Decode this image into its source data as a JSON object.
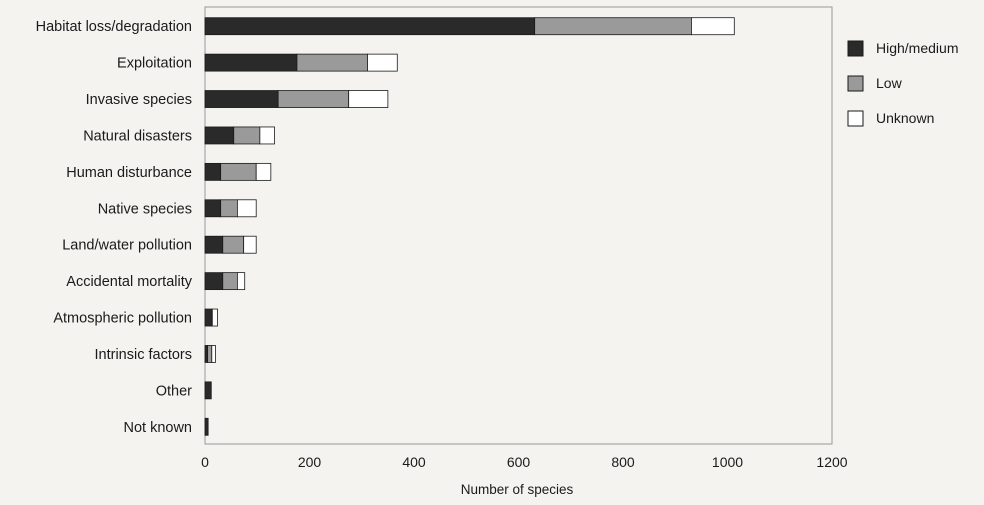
{
  "chart_data": {
    "type": "bar",
    "orientation": "horizontal",
    "stacked": true,
    "categories": [
      "Habitat loss/degradation",
      "Exploitation",
      "Invasive species",
      "Natural disasters",
      "Human disturbance",
      "Native species",
      "Land/water pollution",
      "Accidental mortality",
      "Atmospheric pollution",
      "Intrinsic factors",
      "Other",
      "Not known"
    ],
    "series": [
      {
        "name": "High/medium",
        "color": "#2a2a2a",
        "values": [
          631,
          176,
          140,
          55,
          30,
          30,
          34,
          34,
          14,
          5,
          12,
          6
        ]
      },
      {
        "name": "Low",
        "color": "#9a9a9a",
        "values": [
          300,
          135,
          135,
          50,
          68,
          32,
          40,
          28,
          0,
          8,
          0,
          0
        ]
      },
      {
        "name": "Unknown",
        "color": "#ffffff",
        "values": [
          82,
          57,
          75,
          28,
          28,
          36,
          24,
          14,
          10,
          7,
          0,
          0
        ]
      }
    ],
    "title": "",
    "xlabel": "Number of species",
    "ylabel": "",
    "xlim": [
      0,
      1200
    ],
    "xticks": [
      0,
      200,
      400,
      600,
      800,
      1000,
      1200
    ],
    "grid": false,
    "legend_position": "right"
  }
}
